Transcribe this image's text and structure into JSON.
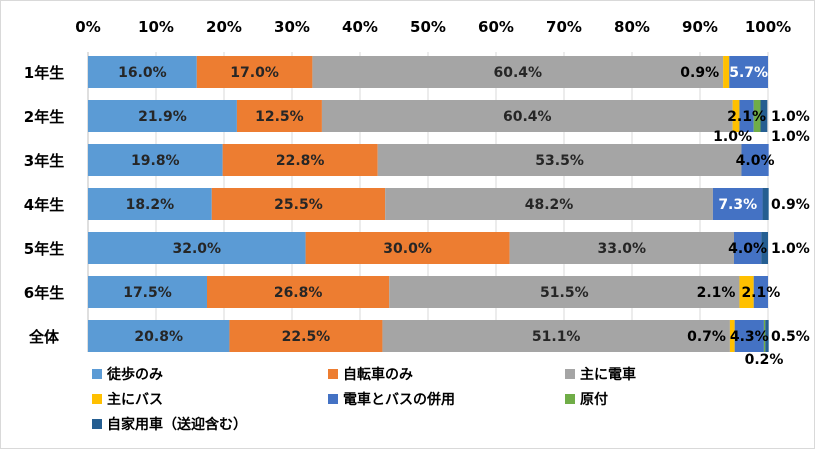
{
  "chart_data": {
    "type": "bar",
    "orientation": "horizontal",
    "stacked": "percent",
    "categories": [
      "1年生",
      "2年生",
      "3年生",
      "4年生",
      "5年生",
      "6年生",
      "全体"
    ],
    "xlim": [
      0,
      100
    ],
    "x_ticks": [
      "0%",
      "10%",
      "20%",
      "30%",
      "40%",
      "50%",
      "60%",
      "70%",
      "80%",
      "90%",
      "100%"
    ],
    "grid": true,
    "legend_position": "bottom",
    "series": [
      {
        "name": "徒歩のみ",
        "color": "#5b9bd5",
        "values": [
          16.0,
          21.9,
          19.8,
          18.2,
          32.0,
          17.5,
          20.8
        ],
        "labels": [
          "16.0%",
          "21.9%",
          "19.8%",
          "18.2%",
          "32.0%",
          "17.5%",
          "20.8%"
        ]
      },
      {
        "name": "自転車のみ",
        "color": "#ed7d31",
        "values": [
          17.0,
          12.5,
          22.8,
          25.5,
          30.0,
          26.8,
          22.5
        ],
        "labels": [
          "17.0%",
          "12.5%",
          "22.8%",
          "25.5%",
          "30.0%",
          "26.8%",
          "22.5%"
        ]
      },
      {
        "name": "主に電車",
        "color": "#a5a5a5",
        "values": [
          60.4,
          60.4,
          53.5,
          48.2,
          33.0,
          51.5,
          51.1
        ],
        "labels": [
          "60.4%",
          "60.4%",
          "53.5%",
          "48.2%",
          "33.0%",
          "51.5%",
          "51.1%"
        ]
      },
      {
        "name": "主にバス",
        "color": "#ffc000",
        "values": [
          0.9,
          1.0,
          0,
          0,
          0,
          2.1,
          0.7
        ],
        "labels": [
          "0.9%",
          "1.0%",
          "",
          "",
          "",
          "2.1%",
          "0.7%"
        ]
      },
      {
        "name": "電車とバスの併用",
        "color": "#4472c4",
        "values": [
          5.7,
          2.1,
          4.0,
          7.3,
          4.0,
          2.1,
          4.3
        ],
        "labels": [
          "5.7%",
          "2.1%",
          "4.0%",
          "7.3%",
          "4.0%",
          "2.1%",
          "4.3%"
        ]
      },
      {
        "name": "原付",
        "color": "#70ad47",
        "values": [
          0,
          1.0,
          0,
          0,
          0,
          0,
          0.2
        ],
        "labels": [
          "",
          "1.0%",
          "",
          "",
          "",
          "",
          "0.2%"
        ]
      },
      {
        "name": "自家用車（送迎含む）",
        "color": "#255e91",
        "values": [
          0,
          1.0,
          0,
          0.9,
          1.0,
          0,
          0.5
        ],
        "labels": [
          "",
          "1.0%",
          "",
          "0.9%",
          "1.0%",
          "",
          "0.5%"
        ]
      }
    ]
  }
}
